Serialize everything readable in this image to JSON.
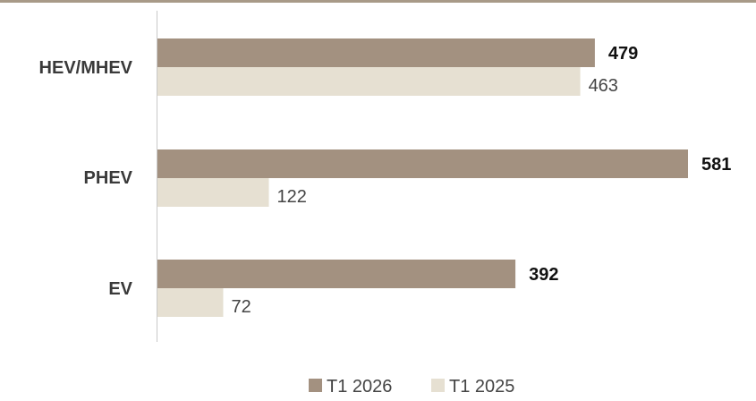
{
  "chart_data": {
    "type": "bar",
    "orientation": "horizontal",
    "categories": [
      "HEV/MHEV",
      "PHEV",
      "EV"
    ],
    "series": [
      {
        "name": "T1 2026",
        "values": [
          479,
          581,
          392
        ],
        "color": "#a39180"
      },
      {
        "name": "T1 2025",
        "values": [
          463,
          122,
          72
        ],
        "color": "#e6e0d2"
      }
    ],
    "xlim": [
      0,
      600
    ],
    "grid": false,
    "legend": "bottom-center",
    "title": "",
    "xlabel": "",
    "ylabel": ""
  },
  "colors": {
    "top_rule": "#a89a88",
    "axis": "#c8c8c8"
  }
}
